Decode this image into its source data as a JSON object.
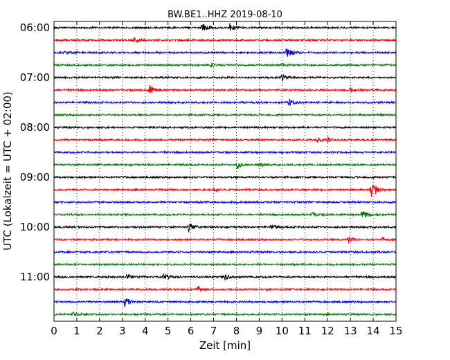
{
  "chart_data": {
    "type": "line",
    "title": "BW.BE1..HHZ 2019-08-10",
    "xlabel": "Zeit  [min]",
    "ylabel": "UTC (Lokalzeit = UTC + 02:00)",
    "xlim": [
      0,
      15
    ],
    "x_ticks": [
      "0",
      "1",
      "2",
      "3",
      "4",
      "5",
      "6",
      "7",
      "8",
      "9",
      "10",
      "11",
      "12",
      "13",
      "14",
      "15"
    ],
    "y_tick_labels": [
      "06:00",
      "07:00",
      "08:00",
      "09:00",
      "10:00",
      "11:00"
    ],
    "trace_minutes_per_line": 15,
    "grid": "vertical dotted",
    "series": [
      {
        "start": "06:00",
        "color": "#000000",
        "events": [
          {
            "t": 6.5,
            "a": 7
          },
          {
            "t": 7.7,
            "a": 6
          }
        ]
      },
      {
        "start": "06:15",
        "color": "#ff0000",
        "events": [
          {
            "t": 3.5,
            "a": 5
          }
        ]
      },
      {
        "start": "06:30",
        "color": "#0000ff",
        "events": [
          {
            "t": 10.2,
            "a": 8
          },
          {
            "t": 0.3,
            "a": 3
          }
        ]
      },
      {
        "start": "06:45",
        "color": "#008000",
        "events": [
          {
            "t": 6.9,
            "a": 3
          },
          {
            "t": 10.0,
            "a": 3
          }
        ]
      },
      {
        "start": "07:00",
        "color": "#000000",
        "events": [
          {
            "t": 10.0,
            "a": 5
          }
        ]
      },
      {
        "start": "07:15",
        "color": "#ff0000",
        "events": [
          {
            "t": 4.2,
            "a": 7
          },
          {
            "t": 13.0,
            "a": 3
          }
        ]
      },
      {
        "start": "07:30",
        "color": "#0000ff",
        "events": [
          {
            "t": 10.3,
            "a": 6
          }
        ]
      },
      {
        "start": "07:45",
        "color": "#008000",
        "events": []
      },
      {
        "start": "08:00",
        "color": "#000000",
        "events": []
      },
      {
        "start": "08:15",
        "color": "#ff0000",
        "events": [
          {
            "t": 11.5,
            "a": 3
          },
          {
            "t": 12.0,
            "a": 3
          }
        ]
      },
      {
        "start": "08:30",
        "color": "#0000ff",
        "events": []
      },
      {
        "start": "08:45",
        "color": "#008000",
        "events": [
          {
            "t": 8.0,
            "a": 6
          },
          {
            "t": 9.0,
            "a": 3
          }
        ]
      },
      {
        "start": "09:00",
        "color": "#000000",
        "events": []
      },
      {
        "start": "09:15",
        "color": "#ff0000",
        "events": [
          {
            "t": 13.9,
            "a": 14
          },
          {
            "t": 7.0,
            "a": 3
          }
        ]
      },
      {
        "start": "09:30",
        "color": "#0000ff",
        "events": []
      },
      {
        "start": "09:45",
        "color": "#008000",
        "events": [
          {
            "t": 13.5,
            "a": 9
          },
          {
            "t": 11.3,
            "a": 3
          }
        ]
      },
      {
        "start": "10:00",
        "color": "#000000",
        "events": [
          {
            "t": 5.9,
            "a": 6
          },
          {
            "t": 9.5,
            "a": 3
          }
        ]
      },
      {
        "start": "10:15",
        "color": "#ff0000",
        "events": [
          {
            "t": 12.9,
            "a": 5
          },
          {
            "t": 14.4,
            "a": 3
          }
        ]
      },
      {
        "start": "10:30",
        "color": "#0000ff",
        "events": []
      },
      {
        "start": "10:45",
        "color": "#008000",
        "events": []
      },
      {
        "start": "11:00",
        "color": "#000000",
        "events": [
          {
            "t": 3.2,
            "a": 4
          },
          {
            "t": 4.8,
            "a": 5
          },
          {
            "t": 7.5,
            "a": 4
          }
        ]
      },
      {
        "start": "11:15",
        "color": "#ff0000",
        "events": [
          {
            "t": 6.3,
            "a": 5
          }
        ]
      },
      {
        "start": "11:30",
        "color": "#0000ff",
        "events": [
          {
            "t": 3.1,
            "a": 7
          }
        ]
      },
      {
        "start": "11:45",
        "color": "#008000",
        "events": [
          {
            "t": 0.8,
            "a": 3
          }
        ]
      }
    ]
  }
}
